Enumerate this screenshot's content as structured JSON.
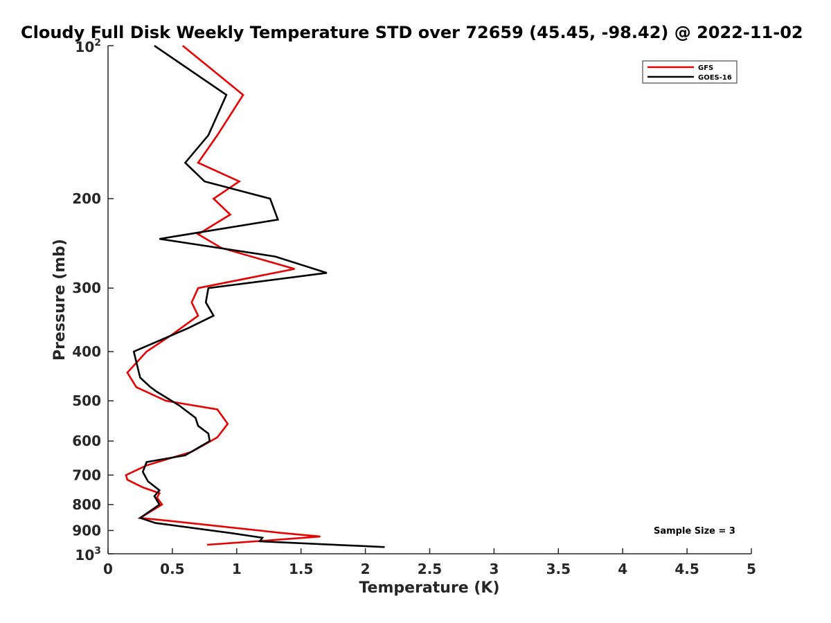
{
  "chart_data": {
    "type": "line",
    "title": "Cloudy Full Disk Weekly Temperature STD over 72659 (45.45, -98.42) @ 2022-11-02",
    "xlabel": "Temperature (K)",
    "ylabel": "Pressure (mb)",
    "xlim": [
      0,
      5
    ],
    "ylim": [
      100,
      1000
    ],
    "y_scale": "log",
    "y_reversed": true,
    "grid": false,
    "legend_position": "top-right",
    "x_ticks": [
      "0",
      "0.5",
      "1",
      "1.5",
      "2",
      "2.5",
      "3",
      "3.5",
      "4",
      "4.5",
      "5"
    ],
    "y_ticks": [
      {
        "value": 100,
        "base": "10",
        "exp": "2"
      },
      {
        "value": 200,
        "label": "200"
      },
      {
        "value": 300,
        "label": "300"
      },
      {
        "value": 400,
        "label": "400"
      },
      {
        "value": 500,
        "label": "500"
      },
      {
        "value": 600,
        "label": "600"
      },
      {
        "value": 700,
        "label": "700"
      },
      {
        "value": 800,
        "label": "800"
      },
      {
        "value": 900,
        "label": "900"
      },
      {
        "value": 1000,
        "base": "10",
        "exp": "3"
      }
    ],
    "series": [
      {
        "name": "GFS",
        "color": "#e60000",
        "points": [
          [
            0.58,
            100
          ],
          [
            1.05,
            125
          ],
          [
            0.85,
            150
          ],
          [
            0.7,
            170
          ],
          [
            1.02,
            185
          ],
          [
            0.82,
            200
          ],
          [
            0.95,
            215
          ],
          [
            0.7,
            235
          ],
          [
            0.88,
            250
          ],
          [
            1.45,
            275
          ],
          [
            0.7,
            300
          ],
          [
            0.65,
            320
          ],
          [
            0.7,
            340
          ],
          [
            0.5,
            370
          ],
          [
            0.3,
            400
          ],
          [
            0.15,
            440
          ],
          [
            0.22,
            470
          ],
          [
            0.45,
            500
          ],
          [
            0.85,
            520
          ],
          [
            0.93,
            555
          ],
          [
            0.85,
            590
          ],
          [
            0.65,
            630
          ],
          [
            0.3,
            670
          ],
          [
            0.14,
            700
          ],
          [
            0.15,
            715
          ],
          [
            0.27,
            740
          ],
          [
            0.4,
            760
          ],
          [
            0.38,
            775
          ],
          [
            0.42,
            800
          ],
          [
            0.25,
            850
          ],
          [
            0.45,
            860
          ],
          [
            1.35,
            910
          ],
          [
            1.65,
            925
          ],
          [
            1.4,
            935
          ],
          [
            0.77,
            960
          ]
        ]
      },
      {
        "name": "GOES-16",
        "color": "#000000",
        "points": [
          [
            0.36,
            100
          ],
          [
            0.92,
            125
          ],
          [
            0.78,
            150
          ],
          [
            0.6,
            170
          ],
          [
            0.75,
            185
          ],
          [
            1.26,
            200
          ],
          [
            1.32,
            220
          ],
          [
            0.4,
            240
          ],
          [
            1.3,
            260
          ],
          [
            1.7,
            280
          ],
          [
            0.78,
            300
          ],
          [
            0.76,
            320
          ],
          [
            0.82,
            340
          ],
          [
            0.62,
            360
          ],
          [
            0.2,
            400
          ],
          [
            0.25,
            450
          ],
          [
            0.33,
            470
          ],
          [
            0.38,
            480
          ],
          [
            0.55,
            510
          ],
          [
            0.68,
            540
          ],
          [
            0.7,
            560
          ],
          [
            0.78,
            580
          ],
          [
            0.79,
            600
          ],
          [
            0.6,
            640
          ],
          [
            0.3,
            660
          ],
          [
            0.27,
            690
          ],
          [
            0.31,
            720
          ],
          [
            0.4,
            750
          ],
          [
            0.36,
            770
          ],
          [
            0.4,
            800
          ],
          [
            0.25,
            850
          ],
          [
            0.37,
            870
          ],
          [
            0.95,
            910
          ],
          [
            1.2,
            930
          ],
          [
            1.18,
            945
          ],
          [
            2.15,
            970
          ]
        ]
      }
    ],
    "annotation": "Sample Size = 3"
  }
}
